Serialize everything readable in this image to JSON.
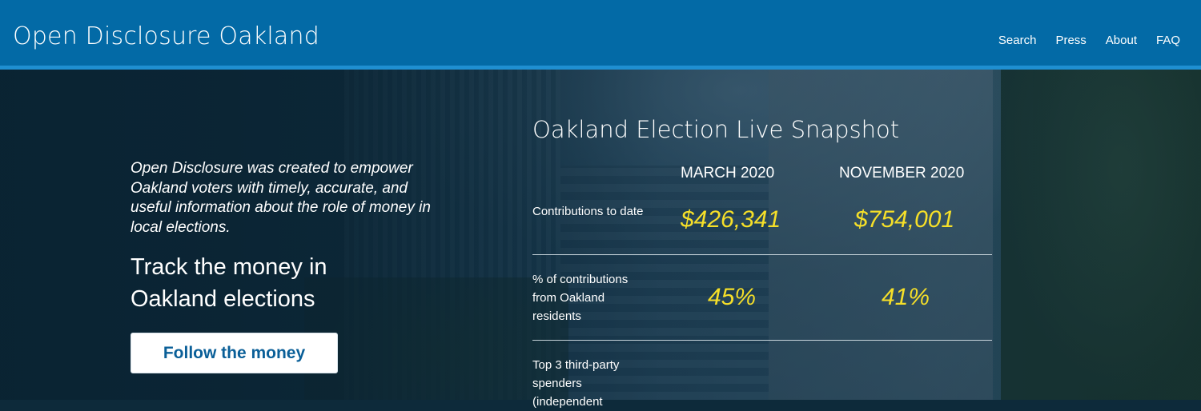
{
  "header": {
    "brand": "Open Disclosure Oakland",
    "nav": [
      "Search",
      "Press",
      "About",
      "FAQ"
    ]
  },
  "hero": {
    "tagline": "Open Disclosure was created to empower Oakland voters with timely, accurate, and useful information about the role of money in local elections.",
    "headline": "Track the money in Oakland elections",
    "cta_label": "Follow the money"
  },
  "snapshot": {
    "title": "Oakland Election Live Snapshot",
    "columns": [
      "MARCH 2020",
      "NOVEMBER 2020"
    ],
    "rows": [
      {
        "label": "Contributions to date",
        "values": [
          "$426,341",
          "$754,001"
        ]
      },
      {
        "label": "% of contributions from Oakland residents",
        "values": [
          "45%",
          "41%"
        ]
      },
      {
        "label": "Top 3 third-party spenders (independent",
        "values": []
      }
    ]
  },
  "colors": {
    "header_bg": "#036aa6",
    "header_strip": "#1f8fd1",
    "accent_value": "#f5df29",
    "cta_text": "#0a5f98"
  }
}
